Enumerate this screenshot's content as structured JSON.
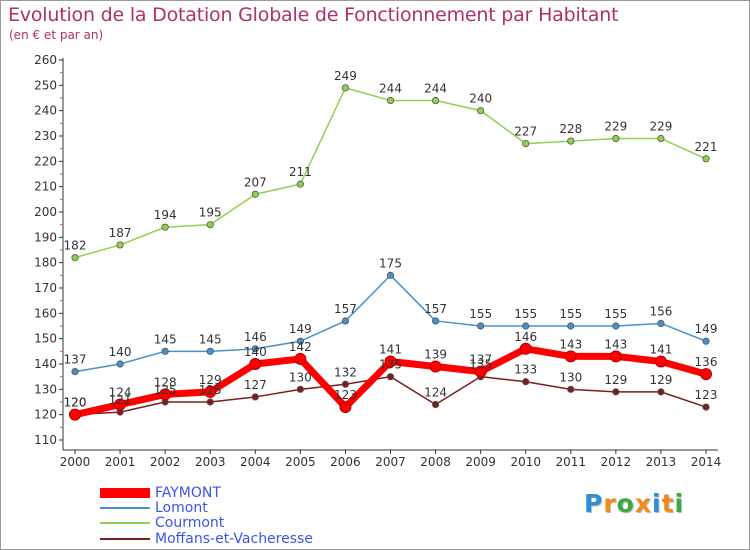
{
  "header": {
    "title": "Evolution de la Dotation Globale de Fonctionnement par Habitant",
    "subtitle": "(en € et par an)"
  },
  "logo": {
    "letters": [
      "P",
      "r",
      "o",
      "x",
      "i",
      "t",
      "i"
    ],
    "colors": [
      "#2e8fd6",
      "#f08a1c",
      "#39a944",
      "#f08a1c",
      "#2e8fd6",
      "#f08a1c",
      "#39a944"
    ]
  },
  "chart_data": {
    "type": "line",
    "title": "Evolution de la Dotation Globale de Fonctionnement par Habitant",
    "subtitle": "(en € et par an)",
    "x": [
      2000,
      2001,
      2002,
      2003,
      2004,
      2005,
      2006,
      2007,
      2008,
      2009,
      2010,
      2011,
      2012,
      2013,
      2014
    ],
    "ylim": [
      110,
      260
    ],
    "yticks": [
      110,
      120,
      130,
      140,
      150,
      160,
      170,
      180,
      190,
      200,
      210,
      220,
      230,
      240,
      250,
      260
    ],
    "grid": false,
    "legend_position": "bottom-left",
    "series": [
      {
        "name": "FAYMONT",
        "color": "#ff0000",
        "values": [
          120,
          124,
          128,
          129,
          140,
          142,
          123,
          141,
          139,
          137,
          146,
          143,
          143,
          141,
          136
        ]
      },
      {
        "name": "Lomont",
        "color": "#4a90c8",
        "values": [
          137,
          140,
          145,
          145,
          146,
          149,
          157,
          175,
          157,
          155,
          155,
          155,
          155,
          156,
          149
        ]
      },
      {
        "name": "Courmont",
        "color": "#8fd14f",
        "values": [
          182,
          187,
          194,
          195,
          207,
          211,
          249,
          244,
          244,
          240,
          227,
          228,
          229,
          229,
          221
        ]
      },
      {
        "name": "Moffans-et-Vacheresse",
        "color": "#7a1f1f",
        "values": [
          120,
          121,
          125,
          125,
          127,
          130,
          132,
          135,
          124,
          135,
          133,
          130,
          129,
          129,
          123
        ]
      }
    ]
  }
}
